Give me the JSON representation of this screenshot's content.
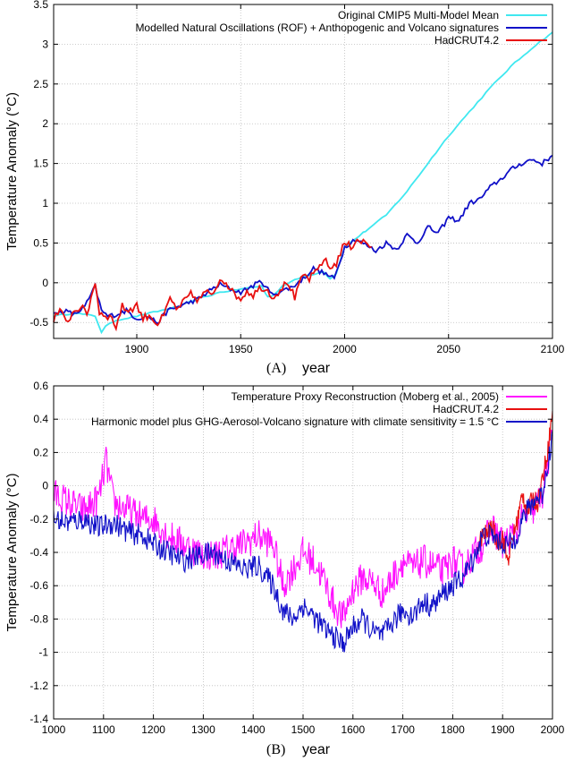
{
  "colors": {
    "cyan": "#40e8f0",
    "blue": "#1010c8",
    "red": "#e81010",
    "magenta": "#ff10ff"
  },
  "chart_data": [
    {
      "type": "line",
      "panel_label": "(A)",
      "xlabel": "year",
      "ylabel": "Temperature Anomaly (°C)",
      "xlim": [
        1860,
        2100
      ],
      "ylim": [
        -0.7,
        3.5
      ],
      "x_ticks": [
        1900,
        1950,
        2000,
        2050,
        2100
      ],
      "y_ticks": [
        -0.5,
        0,
        0.5,
        1,
        1.5,
        2,
        2.5,
        3,
        3.5
      ],
      "grid": true,
      "legend_position": "top-right",
      "series": [
        {
          "name": "Original CMIP5 Multi-Model Mean",
          "color": "cyan",
          "x": [
            1860,
            1870,
            1880,
            1883,
            1885,
            1890,
            1900,
            1910,
            1920,
            1930,
            1940,
            1950,
            1960,
            1963,
            1966,
            1970,
            1980,
            1990,
            1993,
            1996,
            2000,
            2005,
            2010,
            2020,
            2030,
            2040,
            2050,
            2060,
            2070,
            2080,
            2090,
            2100
          ],
          "y": [
            -0.42,
            -0.38,
            -0.42,
            -0.62,
            -0.55,
            -0.47,
            -0.42,
            -0.36,
            -0.3,
            -0.2,
            -0.12,
            -0.08,
            -0.04,
            -0.18,
            -0.15,
            -0.04,
            0.08,
            0.14,
            0.05,
            0.12,
            0.45,
            0.55,
            0.65,
            0.85,
            1.15,
            1.5,
            1.85,
            2.15,
            2.45,
            2.72,
            2.95,
            3.15
          ]
        },
        {
          "name": "Modelled Natural Oscillations (ROF) + Anthopogenic and Volcano signatures",
          "color": "blue",
          "x": [
            1860,
            1865,
            1870,
            1875,
            1880,
            1883,
            1886,
            1890,
            1895,
            1900,
            1905,
            1910,
            1915,
            1920,
            1925,
            1930,
            1935,
            1940,
            1945,
            1950,
            1955,
            1960,
            1965,
            1970,
            1975,
            1980,
            1985,
            1990,
            1995,
            2000,
            2005,
            2010,
            2015,
            2020,
            2025,
            2030,
            2035,
            2040,
            2045,
            2050,
            2055,
            2060,
            2065,
            2070,
            2075,
            2080,
            2085,
            2090,
            2095,
            2100
          ],
          "y": [
            -0.4,
            -0.35,
            -0.4,
            -0.3,
            -0.05,
            -0.35,
            -0.42,
            -0.4,
            -0.35,
            -0.45,
            -0.42,
            -0.5,
            -0.35,
            -0.3,
            -0.25,
            -0.2,
            -0.1,
            -0.02,
            -0.08,
            -0.12,
            -0.05,
            0.02,
            -0.15,
            -0.1,
            -0.05,
            0.05,
            0.18,
            0.12,
            0.05,
            0.45,
            0.55,
            0.48,
            0.4,
            0.5,
            0.42,
            0.6,
            0.5,
            0.7,
            0.62,
            0.82,
            0.78,
            1.0,
            1.05,
            1.2,
            1.3,
            1.42,
            1.5,
            1.55,
            1.5,
            1.6
          ]
        },
        {
          "name": "HadCRUT4.2",
          "color": "red",
          "x": [
            1860,
            1863,
            1866,
            1870,
            1873,
            1876,
            1880,
            1882,
            1885,
            1888,
            1890,
            1893,
            1896,
            1900,
            1903,
            1906,
            1910,
            1913,
            1916,
            1920,
            1923,
            1926,
            1930,
            1933,
            1936,
            1940,
            1943,
            1946,
            1950,
            1953,
            1956,
            1960,
            1963,
            1966,
            1970,
            1973,
            1976,
            1980,
            1983,
            1986,
            1990,
            1993,
            1996,
            2000,
            2003,
            2006,
            2010,
            2013
          ],
          "y": [
            -0.45,
            -0.35,
            -0.5,
            -0.35,
            -0.3,
            -0.4,
            0.02,
            -0.38,
            -0.4,
            -0.45,
            -0.55,
            -0.3,
            -0.35,
            -0.28,
            -0.45,
            -0.4,
            -0.52,
            -0.42,
            -0.2,
            -0.35,
            -0.22,
            -0.15,
            -0.22,
            -0.1,
            -0.18,
            0.05,
            0.02,
            -0.12,
            -0.2,
            -0.1,
            -0.15,
            -0.05,
            -0.1,
            -0.18,
            -0.05,
            0.0,
            -0.2,
            0.1,
            0.05,
            0.12,
            0.3,
            0.18,
            0.25,
            0.5,
            0.45,
            0.55,
            0.5,
            0.45
          ]
        }
      ]
    },
    {
      "type": "line",
      "panel_label": "(B)",
      "xlabel": "year",
      "ylabel": "Temperature Anomaly (°C)",
      "xlim": [
        1000,
        2000
      ],
      "ylim": [
        -1.4,
        0.6
      ],
      "x_ticks": [
        1000,
        1100,
        1200,
        1300,
        1400,
        1500,
        1600,
        1700,
        1800,
        1900,
        2000
      ],
      "y_ticks": [
        -1.4,
        -1.2,
        -1,
        -0.8,
        -0.6,
        -0.4,
        -0.2,
        0,
        0.2,
        0.4,
        0.6
      ],
      "grid": true,
      "legend_position": "top-right",
      "series": [
        {
          "name": "Temperature Proxy Reconstruction (Moberg et al., 2005)",
          "color": "magenta",
          "x": [
            1000,
            1030,
            1060,
            1090,
            1105,
            1120,
            1150,
            1180,
            1200,
            1230,
            1260,
            1290,
            1320,
            1350,
            1380,
            1410,
            1440,
            1460,
            1480,
            1500,
            1520,
            1540,
            1560,
            1580,
            1600,
            1620,
            1640,
            1660,
            1680,
            1700,
            1720,
            1740,
            1760,
            1780,
            1800,
            1820,
            1840,
            1860,
            1880,
            1900,
            1920,
            1940,
            1960,
            1980,
            2000
          ],
          "y": [
            -0.05,
            -0.1,
            -0.15,
            -0.08,
            0.15,
            -0.1,
            -0.15,
            -0.2,
            -0.2,
            -0.3,
            -0.35,
            -0.4,
            -0.42,
            -0.38,
            -0.35,
            -0.3,
            -0.35,
            -0.6,
            -0.5,
            -0.4,
            -0.45,
            -0.55,
            -0.7,
            -0.8,
            -0.62,
            -0.55,
            -0.58,
            -0.65,
            -0.55,
            -0.45,
            -0.5,
            -0.45,
            -0.48,
            -0.52,
            -0.45,
            -0.5,
            -0.42,
            -0.35,
            -0.25,
            -0.35,
            -0.3,
            -0.2,
            -0.15,
            -0.05,
            0.3
          ]
        },
        {
          "name": "HadCRUT.4.2",
          "color": "red",
          "x": [
            1850,
            1860,
            1870,
            1880,
            1890,
            1900,
            1910,
            1920,
            1930,
            1940,
            1950,
            1960,
            1970,
            1980,
            1990,
            2000
          ],
          "y": [
            -0.35,
            -0.3,
            -0.28,
            -0.25,
            -0.35,
            -0.3,
            -0.45,
            -0.32,
            -0.2,
            -0.05,
            -0.15,
            -0.08,
            -0.1,
            0.05,
            0.2,
            0.45
          ]
        },
        {
          "name": "Harmonic model plus GHG-Aerosol-Volcano signature with climate sensitivity = 1.5 °C",
          "color": "blue",
          "x": [
            1000,
            1030,
            1060,
            1090,
            1120,
            1150,
            1180,
            1200,
            1230,
            1260,
            1290,
            1320,
            1350,
            1380,
            1410,
            1440,
            1460,
            1480,
            1500,
            1520,
            1540,
            1560,
            1580,
            1600,
            1620,
            1640,
            1660,
            1680,
            1700,
            1720,
            1740,
            1760,
            1780,
            1800,
            1820,
            1840,
            1860,
            1880,
            1900,
            1920,
            1940,
            1960,
            1980,
            2000
          ],
          "y": [
            -0.2,
            -0.22,
            -0.2,
            -0.25,
            -0.22,
            -0.28,
            -0.3,
            -0.35,
            -0.4,
            -0.45,
            -0.42,
            -0.4,
            -0.45,
            -0.5,
            -0.48,
            -0.6,
            -0.75,
            -0.8,
            -0.72,
            -0.78,
            -0.85,
            -0.9,
            -0.95,
            -0.85,
            -0.8,
            -0.88,
            -0.9,
            -0.82,
            -0.75,
            -0.78,
            -0.7,
            -0.72,
            -0.65,
            -0.6,
            -0.55,
            -0.45,
            -0.3,
            -0.3,
            -0.35,
            -0.35,
            -0.2,
            -0.1,
            -0.05,
            0.3
          ]
        }
      ]
    }
  ]
}
